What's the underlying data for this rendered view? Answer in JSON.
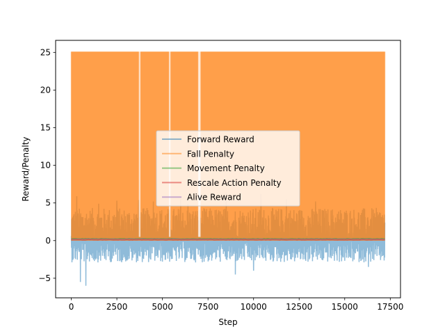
{
  "chart_data": {
    "type": "line",
    "title": "",
    "xlabel": "Step",
    "ylabel": "Reward/Penalty",
    "xlim": [
      -860,
      18060
    ],
    "ylim": [
      -7.6,
      26.6
    ],
    "xticks": [
      0,
      2500,
      5000,
      7500,
      10000,
      12500,
      15000,
      17500
    ],
    "yticks": [
      -5,
      0,
      5,
      10,
      15,
      20,
      25
    ],
    "grid": false,
    "legend_position": "center",
    "step_range": [
      0,
      17200
    ],
    "series": [
      {
        "name": "Forward Reward",
        "color": "#1f77b4",
        "style": "noisy",
        "baseline": 0,
        "typical_range": [
          -3.5,
          4.5
        ],
        "extremes": [
          -6.0,
          6.4
        ],
        "points": [
          [
            0,
            0.6
          ],
          [
            300,
            5.9
          ],
          [
            500,
            -5.5
          ],
          [
            800,
            -6.0
          ],
          [
            1500,
            4.9
          ],
          [
            2500,
            5.3
          ],
          [
            3700,
            5.4
          ],
          [
            4500,
            5.2
          ],
          [
            6000,
            5.5
          ],
          [
            6400,
            4.9
          ],
          [
            8500,
            6.4
          ],
          [
            9000,
            -4.5
          ],
          [
            10000,
            -4.0
          ],
          [
            10400,
            6.2
          ],
          [
            11800,
            5.5
          ],
          [
            13400,
            5.2
          ],
          [
            16300,
            -3.5
          ],
          [
            17200,
            2.4
          ]
        ]
      },
      {
        "name": "Fall Penalty",
        "color": "#ff7f0e",
        "style": "square-wave",
        "low": 0,
        "high": 25.1,
        "gaps": [
          3750,
          5400,
          7000,
          7050
        ]
      },
      {
        "name": "Movement Penalty",
        "color": "#2ca02c",
        "style": "flat",
        "value": 0.25
      },
      {
        "name": "Rescale Action Penalty",
        "color": "#d62728",
        "style": "flat",
        "value": 0.1
      },
      {
        "name": "Alive Reward",
        "color": "#9467bd",
        "style": "flat",
        "value": 0.2
      }
    ]
  }
}
